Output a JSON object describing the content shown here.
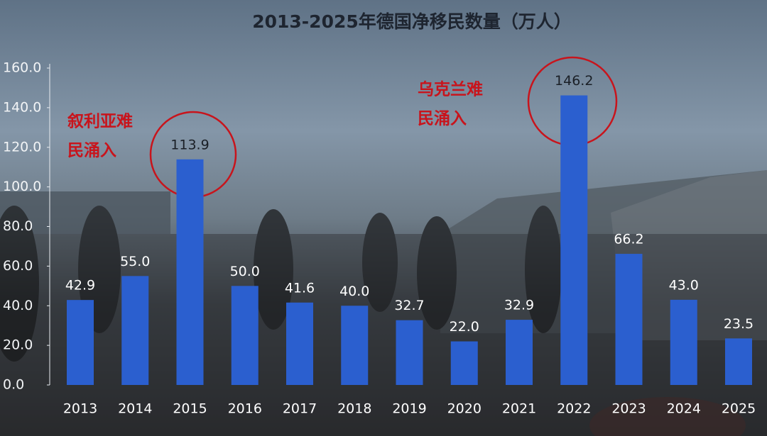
{
  "chart_data": {
    "type": "bar",
    "title": "2013-2025年德国净移民数量（万人）",
    "categories": [
      "2013",
      "2014",
      "2015",
      "2016",
      "2017",
      "2018",
      "2019",
      "2020",
      "2021",
      "2022",
      "2023",
      "2024",
      "2025"
    ],
    "values": [
      42.9,
      55,
      113.9,
      50,
      41.6,
      40,
      32.7,
      22,
      32.9,
      146.2,
      66.2,
      43,
      23.5
    ],
    "value_labels": [
      "42.9",
      "55.0",
      "113.9",
      "50.0",
      "41.6",
      "40.0",
      "32.7",
      "22.0",
      "32.9",
      "146.2",
      "66.2",
      "43.0",
      "23.5"
    ],
    "color": "#2b5fcf",
    "ylim": [
      0,
      160
    ],
    "yticks": [
      {
        "value": 0,
        "label": "0.0"
      },
      {
        "value": 20,
        "label": "20.0"
      },
      {
        "value": 40,
        "label": "40.0"
      },
      {
        "value": 60,
        "label": "60.0"
      },
      {
        "value": 80,
        "label": "80.0"
      },
      {
        "value": 100,
        "label": "100.0"
      },
      {
        "value": 120,
        "label": "120.0"
      },
      {
        "value": 140,
        "label": "140.0"
      },
      {
        "value": 160,
        "label": "160.0"
      }
    ],
    "annotations": [
      [
        "叙利亚难",
        "民涌入"
      ],
      [
        "乌克兰难",
        "民涌入"
      ]
    ]
  }
}
